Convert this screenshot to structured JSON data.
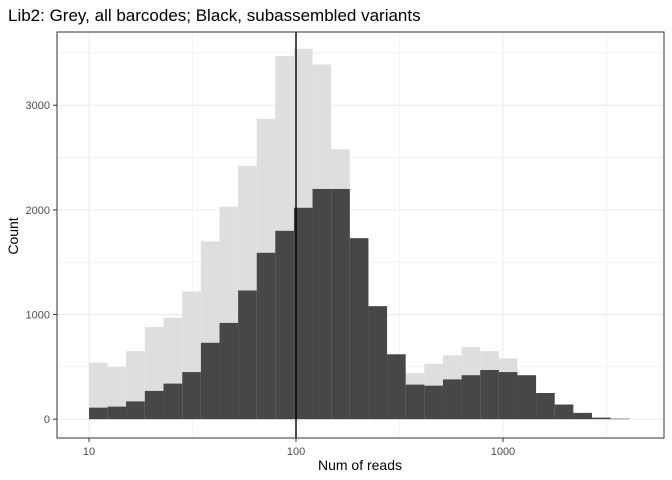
{
  "chart_data": {
    "type": "bar",
    "title": "Lib2: Grey, all barcodes; Black, subassembled variants",
    "xlabel": "Num of reads",
    "ylabel": "Count",
    "x_scale": "log10",
    "xlim": [
      7.0,
      6000.0
    ],
    "ylim": [
      -180,
      3700
    ],
    "x_ticks": [
      10,
      100,
      1000
    ],
    "x_tick_labels": [
      "10",
      "100",
      "1000"
    ],
    "y_ticks": [
      0,
      1000,
      2000,
      3000
    ],
    "y_tick_labels": [
      "0",
      "1000",
      "2000",
      "3000"
    ],
    "grid": true,
    "vline_x": 100,
    "bin_edges": [
      10.0,
      12.3,
      15.1,
      18.6,
      22.9,
      28.2,
      34.7,
      42.7,
      52.5,
      64.6,
      79.4,
      97.7,
      120.2,
      147.9,
      182.0,
      223.9,
      275.4,
      338.8,
      416.9,
      512.9,
      631.0,
      776.2,
      955.0,
      1174.9,
      1445.4,
      1778.3,
      2187.8,
      2691.5,
      3311.3,
      4073.8,
      5011.9
    ],
    "series": [
      {
        "fill": "#dedede",
        "values": [
          540,
          500,
          650,
          880,
          970,
          1220,
          1700,
          2030,
          2420,
          2870,
          3470,
          3540,
          3390,
          2580,
          1640,
          910,
          490,
          440,
          530,
          610,
          690,
          650,
          580,
          370,
          200,
          80,
          20,
          5,
          2,
          0
        ]
      },
      {
        "fill": "#474747",
        "values": [
          110,
          120,
          170,
          270,
          340,
          450,
          730,
          920,
          1230,
          1590,
          1800,
          2020,
          2200,
          2200,
          1730,
          1080,
          620,
          330,
          320,
          380,
          420,
          470,
          450,
          420,
          250,
          140,
          60,
          15,
          5,
          0
        ]
      }
    ],
    "colors": {
      "panel_border": "#333333",
      "gridline": "#ebebeb",
      "vline": "#000000"
    }
  }
}
